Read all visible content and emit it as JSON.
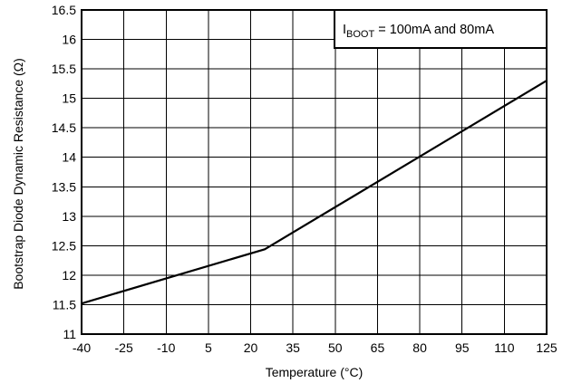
{
  "chart_data": {
    "type": "line",
    "title": "",
    "xlabel": "Temperature (°C)",
    "ylabel": "Bootstrap Diode Dynamic Resistance (Ω)",
    "xlim": [
      -40,
      125
    ],
    "ylim": [
      11,
      16.5
    ],
    "xticks": [
      -40,
      -25,
      -10,
      5,
      20,
      35,
      50,
      65,
      80,
      95,
      110,
      125
    ],
    "yticks": [
      11,
      11.5,
      12,
      12.5,
      13,
      13.5,
      14,
      14.5,
      15,
      15.5,
      16,
      16.5
    ],
    "xtick_labels": [
      "-40",
      "-25",
      "-10",
      "5",
      "20",
      "35",
      "50",
      "65",
      "80",
      "95",
      "110",
      "125"
    ],
    "ytick_labels": [
      "11",
      "11.5",
      "12",
      "12.5",
      "13",
      "13.5",
      "14",
      "14.5",
      "15",
      "15.5",
      "16",
      "16.5"
    ],
    "grid": true,
    "legend_position": "top-right",
    "legend": {
      "prefix": "I",
      "subscript": "BOOT",
      "suffix": " = 100mA and 80mA"
    },
    "series": [
      {
        "x": [
          -40,
          25,
          125
        ],
        "y": [
          11.52,
          12.44,
          15.3
        ]
      }
    ],
    "line_color": "#000000"
  }
}
